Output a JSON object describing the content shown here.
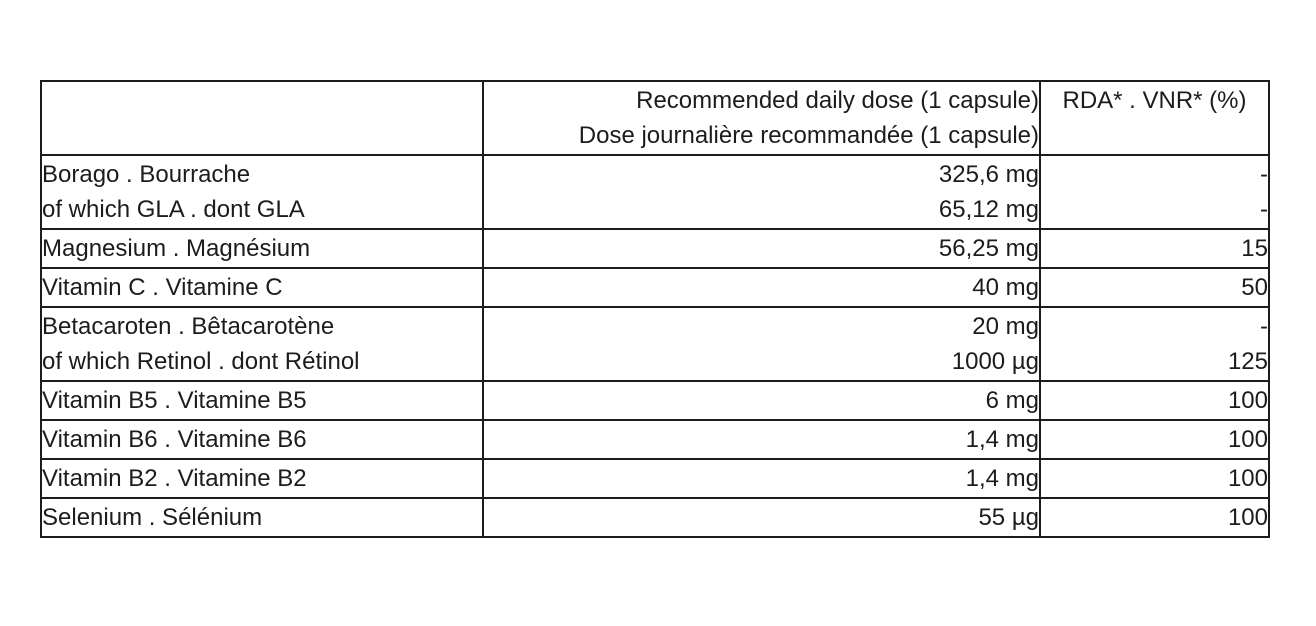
{
  "table": {
    "header": {
      "ingredient": "",
      "dose_line_en": "Recommended daily dose (1 capsule)",
      "dose_line_fr": "Dose journalière recommandée (1 capsule)",
      "rda": "RDA* . VNR* (%)"
    },
    "rows": [
      {
        "name": [
          "Borago . Bourrache",
          "of which GLA . dont GLA"
        ],
        "dose": [
          "325,6 mg",
          "65,12 mg"
        ],
        "rda": [
          "-",
          "-"
        ]
      },
      {
        "name": [
          "Magnesium . Magnésium"
        ],
        "dose": [
          "56,25 mg"
        ],
        "rda": [
          "15"
        ]
      },
      {
        "name": [
          "Vitamin C . Vitamine C"
        ],
        "dose": [
          "40 mg"
        ],
        "rda": [
          "50"
        ]
      },
      {
        "name": [
          "Betacaroten . Bêtacarotène",
          "of which Retinol . dont Rétinol"
        ],
        "dose": [
          "20 mg",
          "1000 µg"
        ],
        "rda": [
          "-",
          "125"
        ]
      },
      {
        "name": [
          "Vitamin B5 . Vitamine B5"
        ],
        "dose": [
          "6 mg"
        ],
        "rda": [
          "100"
        ]
      },
      {
        "name": [
          "Vitamin B6 . Vitamine B6"
        ],
        "dose": [
          "1,4 mg"
        ],
        "rda": [
          "100"
        ]
      },
      {
        "name": [
          "Vitamin B2 . Vitamine B2"
        ],
        "dose": [
          "1,4 mg"
        ],
        "rda": [
          "100"
        ]
      },
      {
        "name": [
          "Selenium . Sélénium"
        ],
        "dose": [
          "55 µg"
        ],
        "rda": [
          "100"
        ]
      }
    ],
    "colors": {
      "border": "#1c1c1c",
      "text": "#1c1c1c",
      "background": "#ffffff"
    }
  }
}
